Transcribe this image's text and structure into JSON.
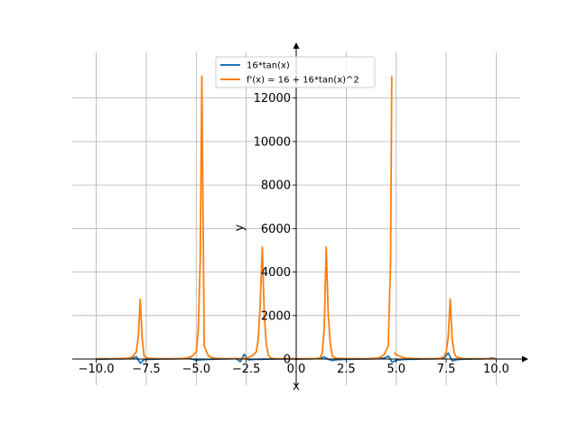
{
  "chart_data": {
    "type": "line",
    "title": "",
    "xlabel": "x",
    "ylabel": "y",
    "xlim": [
      -11.2,
      11.2
    ],
    "ylim": [
      -1200,
      14100
    ],
    "x_ticks": [
      -10,
      -7.5,
      -5,
      -2.5,
      0,
      2.5,
      5,
      7.5,
      10
    ],
    "x_tick_labels": [
      "−10.0",
      "−7.5",
      "−5.0",
      "−2.5",
      "0.0",
      "2.5",
      "5.0",
      "7.5",
      "10.0"
    ],
    "y_ticks": [
      0,
      2000,
      4000,
      6000,
      8000,
      10000,
      12000
    ],
    "y_tick_labels": [
      "0",
      "2000",
      "4000",
      "6000",
      "8000",
      "10000",
      "12000"
    ],
    "grid": true,
    "legend_position": "top-center",
    "series": [
      {
        "name": "16*tan(x)",
        "color": "#1f77b4",
        "x": [
          -10.0,
          -9.8,
          -9.6,
          -9.4,
          -9.2,
          -9.0,
          -8.8,
          -8.6,
          -8.4,
          -8.2,
          -8.0,
          -7.8,
          -7.6,
          -7.4,
          -7.2,
          -7.0,
          -6.8,
          -6.6,
          -6.4,
          -6.2,
          -6.0,
          -5.8,
          -5.6,
          -5.4,
          -5.2,
          -5.0,
          -4.8,
          -4.6,
          -4.4,
          -4.2,
          -4.0,
          -3.8,
          -3.6,
          -3.4,
          -3.2,
          -3.0,
          -2.8,
          -2.6,
          -2.4,
          -2.2,
          -2.0,
          -1.8,
          -1.6,
          -1.4,
          -1.2,
          -1.0,
          -0.8,
          -0.6,
          -0.4,
          -0.2,
          0.0,
          0.2,
          0.4,
          0.6,
          0.8,
          1.0,
          1.2,
          1.4,
          1.6,
          1.8,
          2.0,
          2.2,
          2.4,
          2.6,
          2.8,
          3.0,
          3.2,
          3.4,
          3.6,
          3.8,
          4.0,
          4.2,
          4.4,
          4.6,
          4.8,
          5.0,
          5.2,
          5.4,
          5.6,
          5.8,
          6.0,
          6.2,
          6.4,
          6.6,
          6.8,
          7.0,
          7.2,
          7.4,
          7.6,
          7.8,
          8.0,
          8.2,
          8.4,
          8.6,
          8.8,
          9.0,
          9.2,
          9.4,
          9.6,
          9.8,
          10.0
        ],
        "y": [
          -10.4,
          -5.9,
          -2.2,
          1.3,
          4.9,
          7.6,
          10.4,
          14.4,
          21.5,
          34.7,
          108.8,
          -188,
          -24.0,
          -11.4,
          -5.2,
          -1.3,
          2.5,
          5.5,
          9.0,
          12.5,
          15.6,
          20.3,
          29.6,
          49.1,
          -1.5,
          -54.1,
          -36.5,
          -24.0,
          -15.1,
          -8.4,
          -2.6,
          2.1,
          6.3,
          11.1,
          17.0,
          25.0,
          -125,
          220,
          -36.8,
          -22.9,
          -15.1,
          -10.2,
          -5.7,
          -2.6,
          0.3,
          2.9,
          5.6,
          9.5,
          14.1,
          20.6,
          0.0,
          3.2,
          6.8,
          10.9,
          16.4,
          24.9,
          41.1,
          92.6,
          -9.3,
          -69.7,
          -35.0,
          -22.5,
          -14.9,
          -9.5,
          -5.7,
          -2.3,
          1.0,
          4.2,
          7.6,
          11.6,
          18.5,
          28.3,
          48.6,
          134.4,
          -144,
          -54.1,
          -29.8,
          -18.2,
          -10.4,
          -5.3,
          -4.7,
          1.3,
          2.2,
          5.7,
          8.9,
          14.0,
          25.0,
          59.0,
          280,
          -80,
          -34.0,
          -11.5,
          -6.1,
          -1.6,
          2.0,
          5.8,
          8.8,
          15.2,
          24.8,
          47.7,
          10.4
        ]
      },
      {
        "name": "f'(x) = 16 + 16*tan(x)^2",
        "color": "#ff7f0e",
        "x": [
          -10.0,
          -9.6,
          -9.2,
          -8.8,
          -8.4,
          -8.2,
          -8.0,
          -7.9,
          -7.8,
          -7.7,
          -7.6,
          -7.4,
          -7.0,
          -6.5,
          -6.0,
          -5.5,
          -5.2,
          -5.0,
          -4.9,
          -4.8,
          -4.72,
          -4.6,
          -4.4,
          -4.2,
          -4.0,
          -3.5,
          -3.0,
          -2.5,
          -2.2,
          -2.0,
          -1.9,
          -1.8,
          -1.7,
          -1.6,
          -1.5,
          -1.4,
          -1.3,
          -1.2,
          -1.0,
          -0.5,
          0.0,
          0.5,
          1.0,
          1.2,
          1.3,
          1.4,
          1.5,
          1.6,
          1.7,
          1.8,
          1.9,
          2.0,
          2.5,
          3.0,
          3.5,
          4.0,
          4.2,
          4.4,
          4.6,
          4.72,
          4.78
        ],
        "y": [
          20,
          18,
          17,
          23,
          45,
          95,
          330,
          1000,
          2750,
          900,
          120,
          35,
          18,
          16,
          18,
          35,
          140,
          320,
          1300,
          4500,
          13000,
          600,
          150,
          60,
          30,
          17,
          20,
          40,
          150,
          320,
          900,
          2500,
          5150,
          2100,
          700,
          200,
          70,
          30,
          20,
          16,
          16,
          16,
          22,
          60,
          300,
          1400,
          5150,
          2100,
          750,
          160,
          70,
          40,
          18,
          16,
          17,
          35,
          80,
          210,
          600,
          4500,
          13000
        ]
      },
      {
        "name": "",
        "color": "#ff7f0e",
        "x": [
          4.9,
          5.0,
          5.2,
          5.5,
          6.0,
          6.5,
          7.0,
          7.2,
          7.4,
          7.5,
          7.6,
          7.7,
          7.8,
          7.9,
          8.0,
          8.2,
          8.4,
          8.8,
          9.2,
          9.6,
          10.0
        ],
        "y": [
          300,
          200,
          120,
          40,
          18,
          16,
          18,
          35,
          120,
          330,
          1000,
          2750,
          900,
          300,
          100,
          45,
          25,
          18,
          17,
          18,
          20
        ]
      }
    ]
  }
}
